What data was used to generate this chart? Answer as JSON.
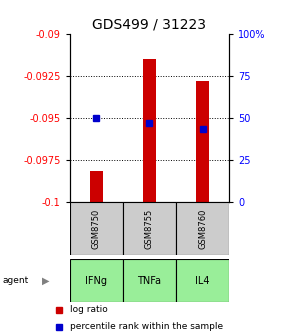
{
  "title": "GDS499 / 31223",
  "samples": [
    "GSM8750",
    "GSM8755",
    "GSM8760"
  ],
  "agents": [
    "IFNg",
    "TNFa",
    "IL4"
  ],
  "log_ratios": [
    -0.0982,
    -0.0915,
    -0.0928
  ],
  "baseline": -0.1,
  "percentile_ranks": [
    0.5,
    0.47,
    0.43
  ],
  "ylim_left": [
    -0.1,
    -0.09
  ],
  "ylim_right": [
    0,
    1
  ],
  "yticks_left": [
    -0.1,
    -0.0975,
    -0.095,
    -0.0925,
    -0.09
  ],
  "ytick_labels_left": [
    "-0.1",
    "-0.0975",
    "-0.095",
    "-0.0925",
    "-0.09"
  ],
  "yticks_right": [
    0,
    0.25,
    0.5,
    0.75,
    1.0
  ],
  "ytick_labels_right": [
    "0",
    "25",
    "50",
    "75",
    "100%"
  ],
  "bar_color": "#cc0000",
  "dot_color": "#0000cc",
  "agent_bg_color": "#99ee99",
  "sample_bg_color": "#cccccc",
  "title_fontsize": 10,
  "axis_fontsize": 7,
  "legend_fontsize": 6.5
}
